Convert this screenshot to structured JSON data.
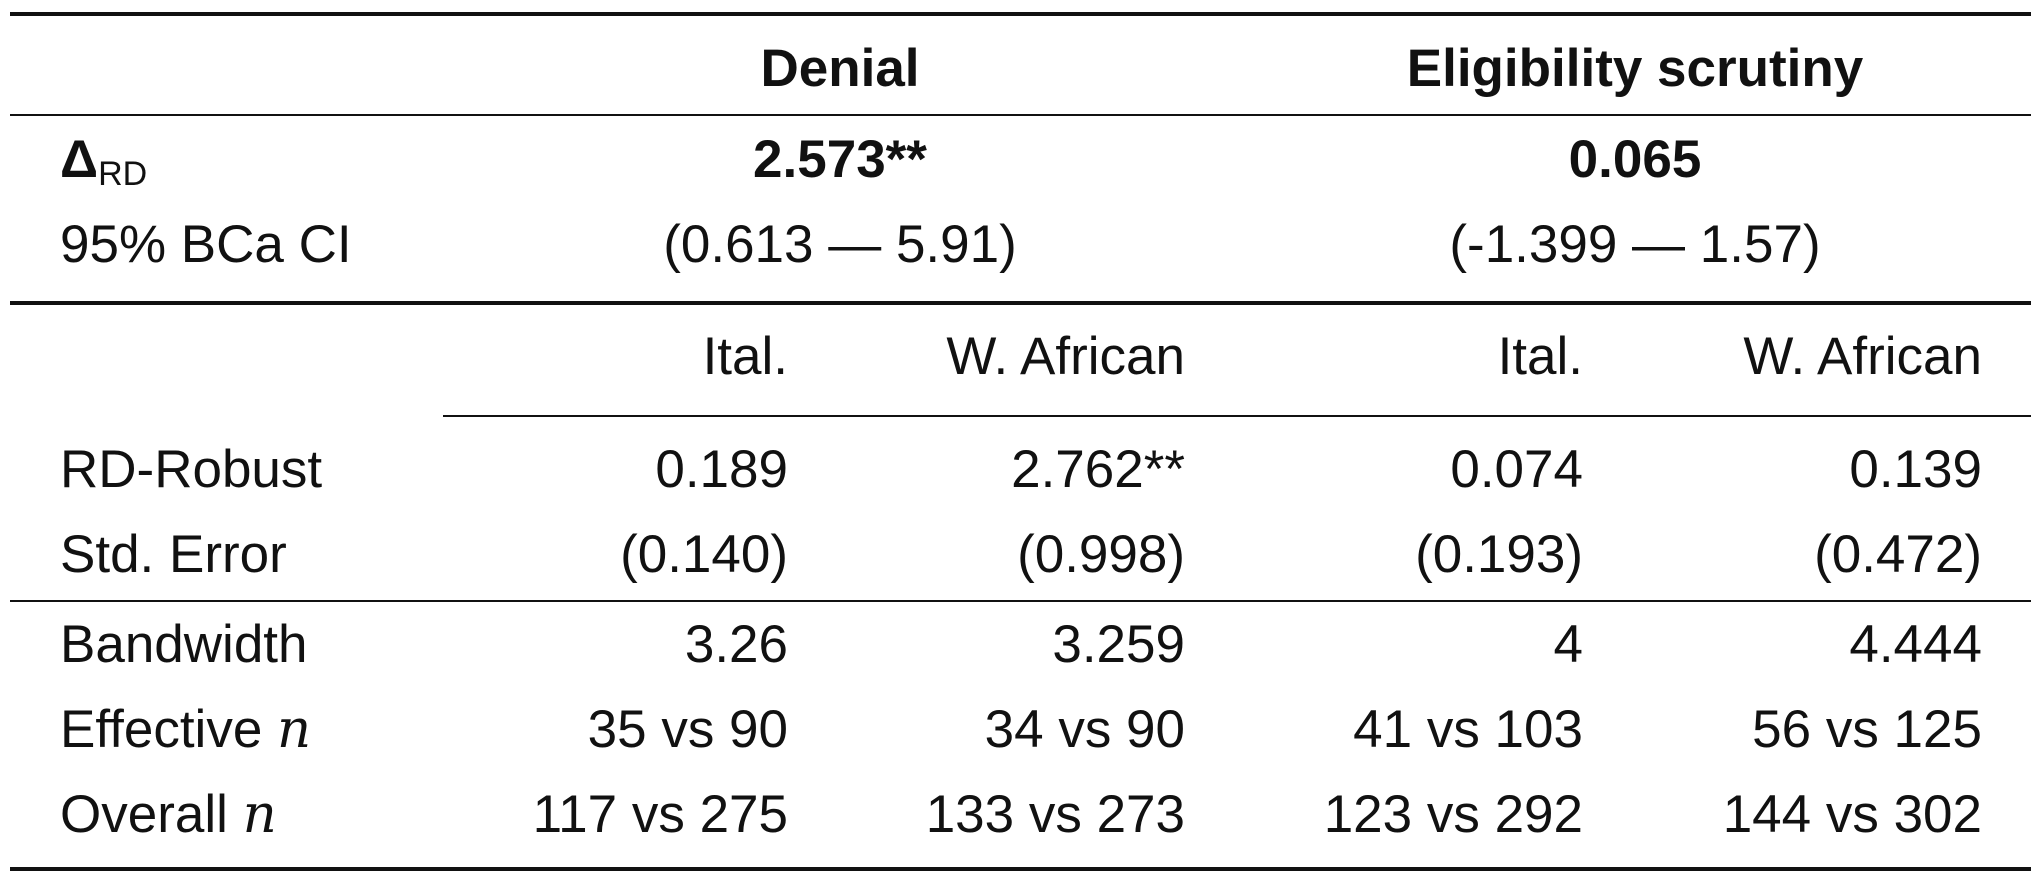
{
  "header": {
    "denial": "Denial",
    "eligibility": "Eligibility scrutiny"
  },
  "delta": {
    "symbol": "Δ",
    "subscript": "RD",
    "denial_value": "2.573**",
    "eligibility_value": "0.065"
  },
  "ci": {
    "label": "95% BCa CI",
    "denial": "(0.613 — 5.91)",
    "eligibility": "(-1.399 — 1.57)"
  },
  "subheaders": [
    "Ital.",
    "W. African",
    "Ital.",
    "W. African"
  ],
  "rows": [
    {
      "label": "RD-Robust",
      "values": [
        "0.189",
        "2.762**",
        "0.074",
        "0.139"
      ]
    },
    {
      "label": "Std. Error",
      "values": [
        "(0.140)",
        "(0.998)",
        "(0.193)",
        "(0.472)"
      ]
    },
    {
      "label": "Bandwidth",
      "values": [
        "3.26",
        "3.259",
        "4",
        "4.444"
      ]
    },
    {
      "label": "Effective",
      "var": "n",
      "values": [
        "35 vs 90",
        "34 vs 90",
        "41 vs 103",
        "56 vs 125"
      ]
    },
    {
      "label": "Overall",
      "var": "n",
      "values": [
        "117 vs 275",
        "133 vs 273",
        "123 vs 292",
        "144 vs 302"
      ]
    }
  ]
}
